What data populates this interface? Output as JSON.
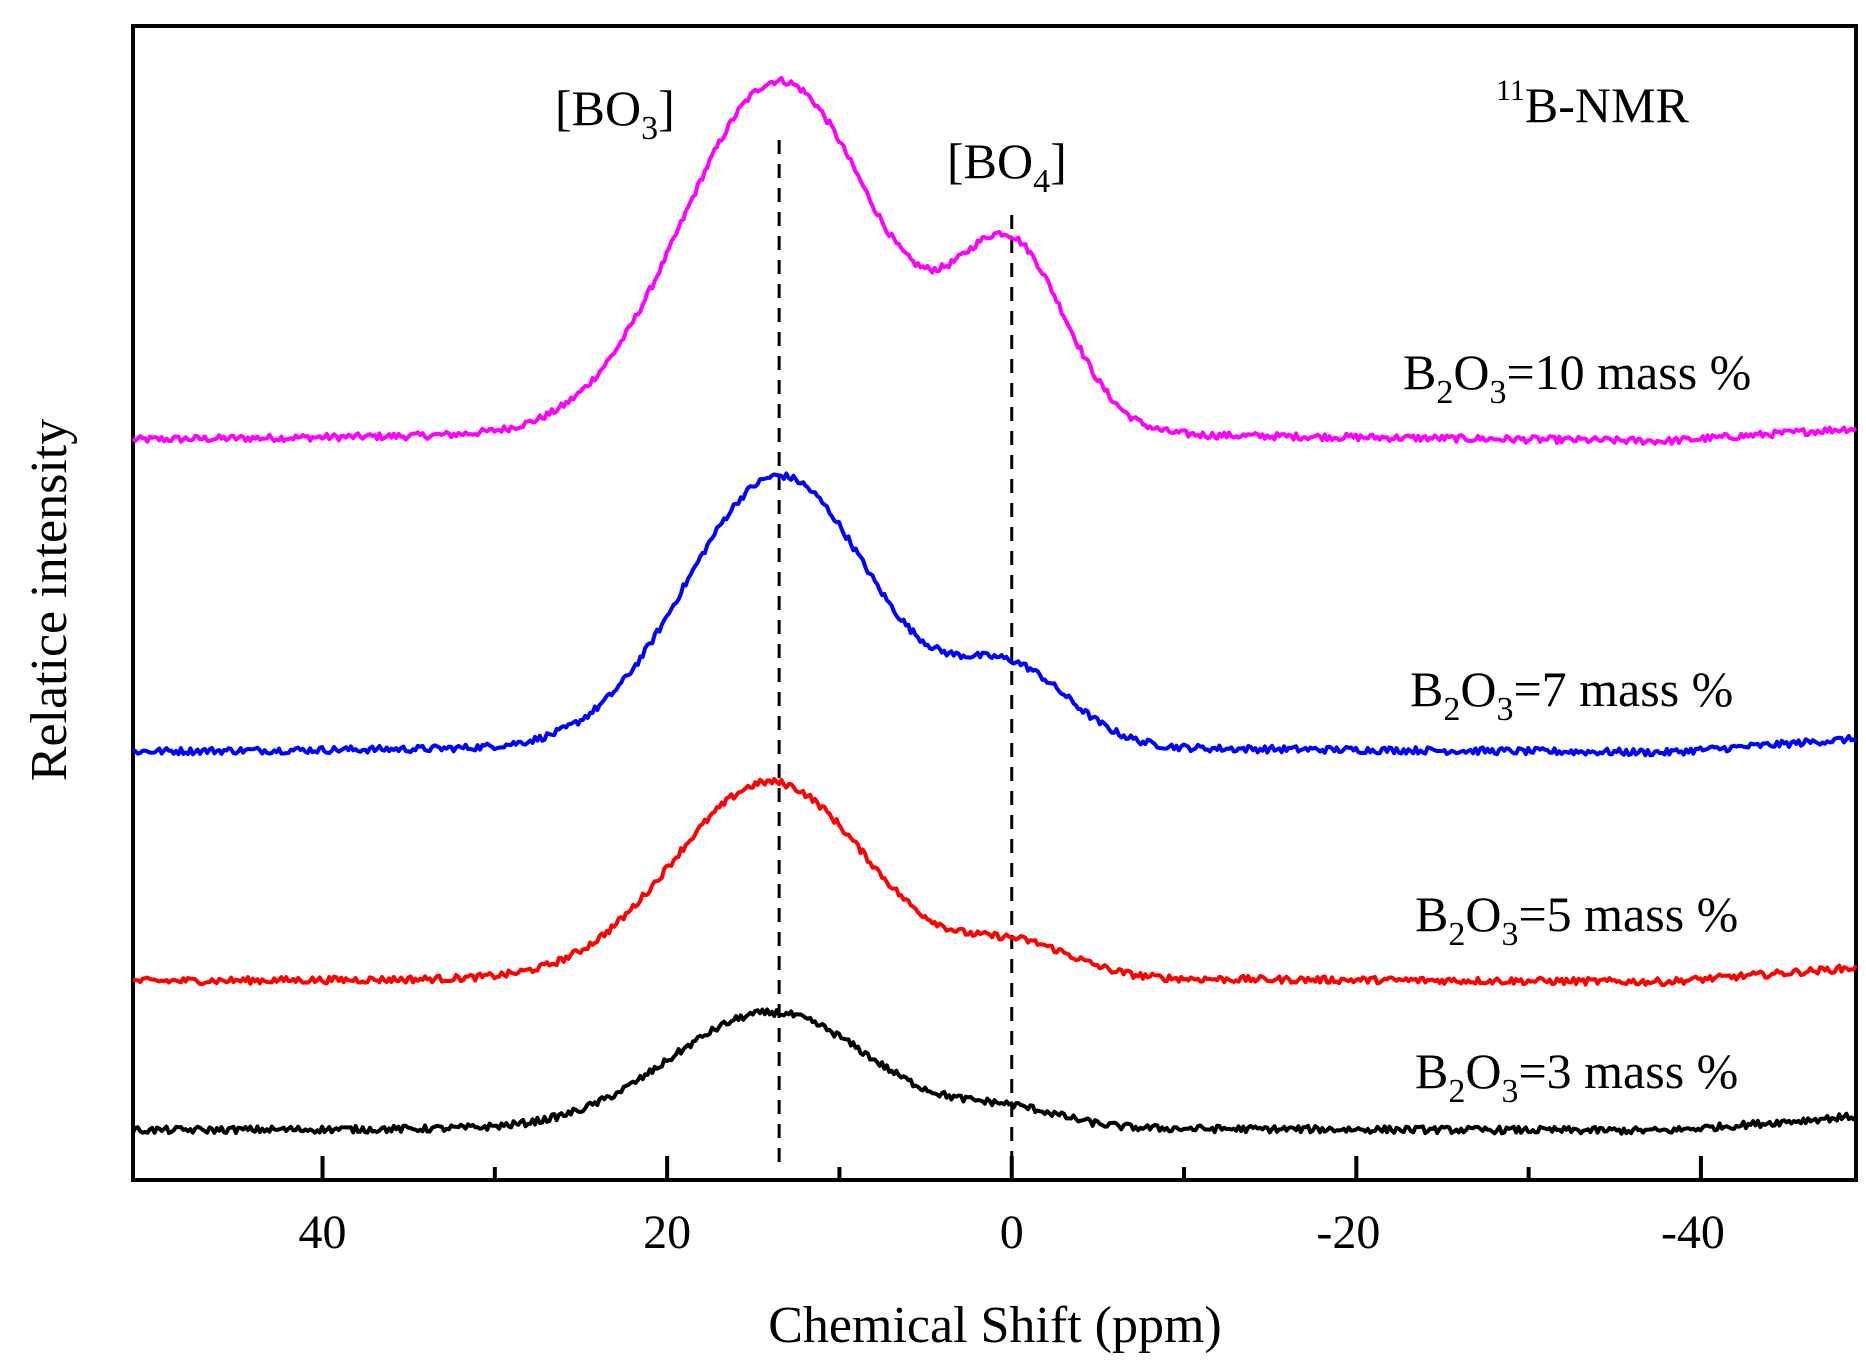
{
  "chart_data": {
    "type": "line",
    "title": "",
    "xlabel": "Chemical Shift (ppm)",
    "ylabel": "Relatice intensity",
    "xlim": [
      51,
      -49
    ],
    "x_reversed": true,
    "y_ticks_shown": false,
    "grid": false,
    "x_major_ticks": [
      40,
      20,
      0,
      -20,
      -40
    ],
    "x_tick_labels": [
      "40",
      "20",
      "0",
      "-20",
      "-40"
    ],
    "x_minor_ticks": [
      30,
      10,
      -10,
      -30
    ],
    "nucleus_label": {
      "sup": "11",
      "main": "B-NMR"
    },
    "reference_lines": [
      {
        "x": 13.5,
        "label_main": "[BO",
        "label_sub": "3",
        "label_close": "]"
      },
      {
        "x": 0,
        "label_main": "[BO",
        "label_sub": "4",
        "label_close": "]"
      }
    ],
    "series": [
      {
        "name": "B2O3=10 mass %",
        "label_parts": {
          "a": "B",
          "sub1": "2",
          "b": "O",
          "sub2": "3",
          "c": "=10 mass %"
        },
        "color": "#ff00ff",
        "baseline": 0.15,
        "baseline_slope": 0.0,
        "peaks": [
          {
            "center": 13.5,
            "height": 3.05,
            "width": 5.6
          },
          {
            "center": 0.0,
            "height": 1.55,
            "width": 3.2
          }
        ],
        "x": [
          51,
          40,
          30,
          25,
          20,
          16,
          13.5,
          11,
          8,
          5,
          2,
          0,
          -3,
          -6,
          -10,
          -20,
          -30,
          -40,
          -49
        ],
        "values": [
          0.0,
          0.05,
          0.15,
          0.4,
          1.4,
          2.7,
          3.05,
          2.7,
          1.65,
          1.15,
          1.4,
          1.58,
          1.1,
          0.35,
          0.12,
          0.08,
          0.05,
          0.1,
          0.18
        ]
      },
      {
        "name": "B2O3=7 mass %",
        "label_parts": {
          "a": "B",
          "sub1": "2",
          "b": "O",
          "sub2": "3",
          "c": "=7 mass %"
        },
        "color": "#0000ff",
        "baseline": 0.1,
        "baseline_slope": 0.0,
        "peaks": [
          {
            "center": 13.5,
            "height": 2.35,
            "width": 5.4
          },
          {
            "center": 0.0,
            "height": 0.65,
            "width": 3.4
          }
        ],
        "x": [
          51,
          40,
          30,
          25,
          20,
          16,
          13.5,
          11,
          8,
          5,
          2,
          0,
          -3,
          -6,
          -10,
          -20,
          -30,
          -40,
          -49
        ],
        "values": [
          0.0,
          0.02,
          0.05,
          0.3,
          1.1,
          2.1,
          2.35,
          2.0,
          1.1,
          0.65,
          0.65,
          0.72,
          0.45,
          0.15,
          0.05,
          0.02,
          0.0,
          0.05,
          0.15
        ]
      },
      {
        "name": "B2O3=5 mass %",
        "label_parts": {
          "a": "B",
          "sub1": "2",
          "b": "O",
          "sub2": "3",
          "c": "=5 mass %"
        },
        "color": "#ff0000",
        "baseline": 0.07,
        "baseline_slope": 0.0,
        "peaks": [
          {
            "center": 14.0,
            "height": 1.7,
            "width": 5.6
          },
          {
            "center": -0.5,
            "height": 0.28,
            "width": 3.2
          }
        ],
        "x": [
          51,
          40,
          30,
          25,
          20,
          16,
          14,
          11,
          8,
          5,
          2,
          0,
          -3,
          -6,
          -10,
          -20,
          -30,
          -40,
          -49
        ],
        "values": [
          0.0,
          0.02,
          0.05,
          0.25,
          0.8,
          1.55,
          1.7,
          1.45,
          0.85,
          0.35,
          0.28,
          0.3,
          0.18,
          0.05,
          0.02,
          0.0,
          0.0,
          0.03,
          0.1
        ]
      },
      {
        "name": "B2O3=3 mass %",
        "label_parts": {
          "a": "B",
          "sub1": "2",
          "b": "O",
          "sub2": "3",
          "c": "=3 mass %"
        },
        "color": "#000000",
        "baseline": 0.05,
        "baseline_slope": 0.0,
        "peaks": [
          {
            "center": 14.0,
            "height": 1.0,
            "width": 5.8
          },
          {
            "center": 0.0,
            "height": 0.15,
            "width": 3.0
          }
        ],
        "x": [
          51,
          40,
          30,
          25,
          20,
          16,
          14,
          11,
          8,
          5,
          2,
          0,
          -3,
          -6,
          -10,
          -20,
          -30,
          -40,
          -49
        ],
        "values": [
          0.0,
          0.02,
          0.05,
          0.15,
          0.5,
          0.9,
          1.0,
          0.85,
          0.5,
          0.2,
          0.15,
          0.16,
          0.08,
          0.03,
          0.02,
          0.0,
          0.0,
          0.02,
          0.07
        ]
      }
    ]
  }
}
